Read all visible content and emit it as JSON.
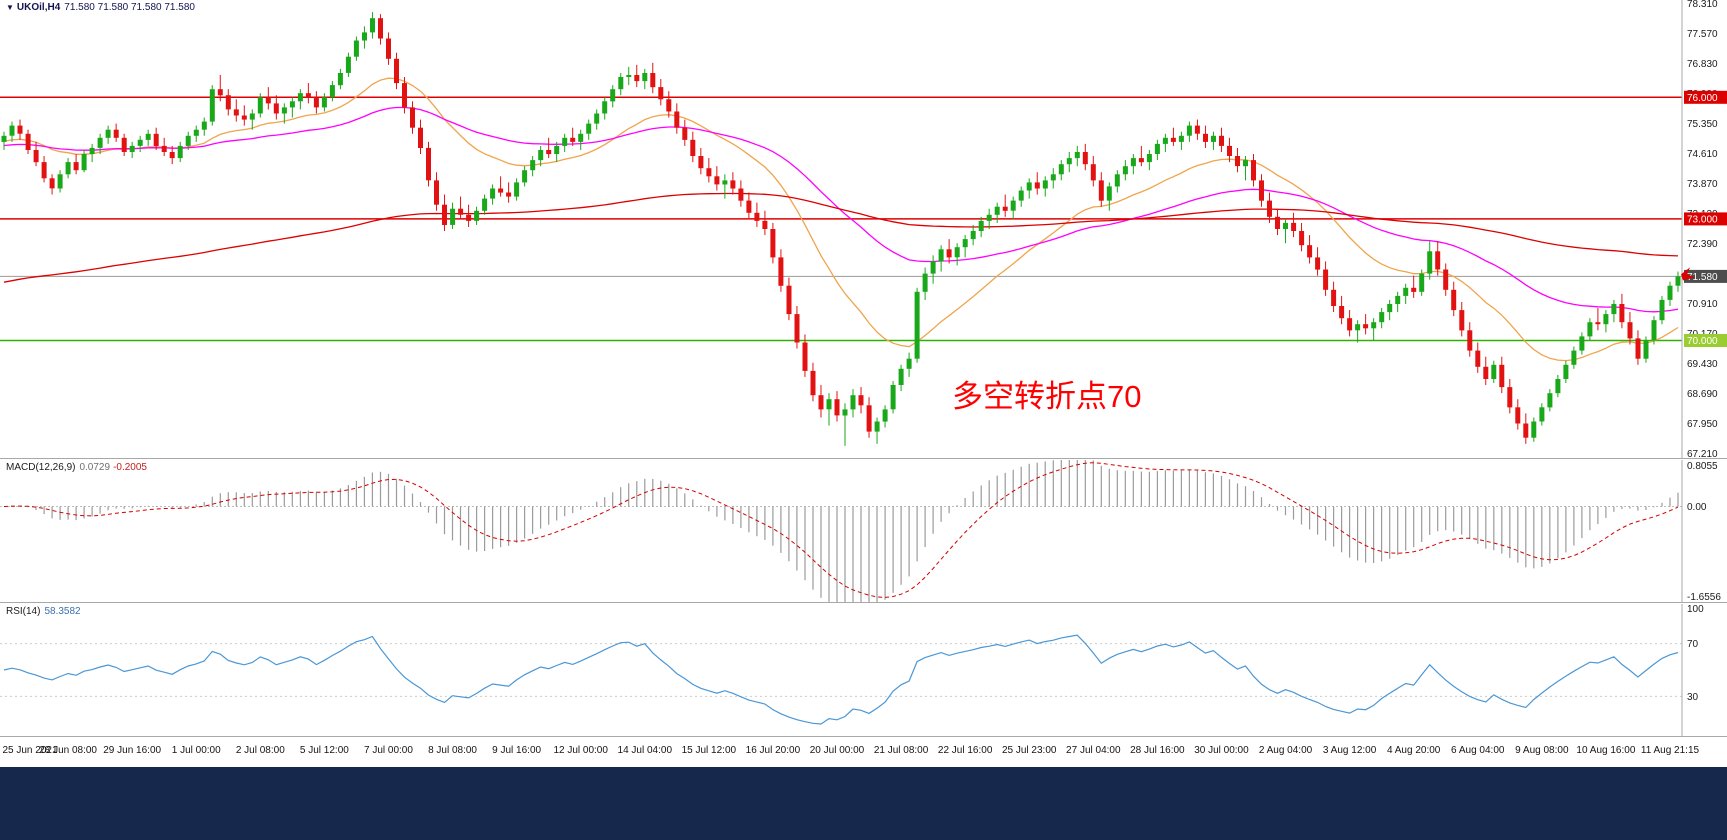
{
  "colors": {
    "background": "#ffffff",
    "up": "#19a819",
    "down": "#e31212",
    "ma_fast": "#f0a44c",
    "ma_mid": "#ff00ff",
    "ma_slow": "#dd0000",
    "current_price_line": "#9a9a9a",
    "current_price_badge_bg": "#4d4d4d",
    "macd_hist": "#9b9b9b",
    "macd_signal": "#d40000",
    "rsi_line": "#4a97d6",
    "annotation": "#ff0000",
    "taskbar": "#16294d",
    "separator": "#a8a8a8",
    "axis_text": "#1a1a1a"
  },
  "main_panel": {
    "collapse_icon": "▼",
    "title_symbol": "UKOil,H4",
    "title_ohlc": "71.580 71.580 71.580 71.580",
    "annotation": "多空转折点70"
  },
  "macd_panel": {
    "label": "MACD(12,26,9)",
    "value_main": "0.0729",
    "value_signal": "-0.2005",
    "axis_labels": [
      "0.8055",
      "0.00",
      "-1.6556"
    ],
    "range": {
      "max": 0.8055,
      "min": -1.6556
    }
  },
  "rsi_panel": {
    "label": "RSI(14)",
    "value": "58.3582",
    "period": 14,
    "levels": [
      70,
      30
    ],
    "axis_labels": [
      "100",
      "70",
      "30"
    ]
  },
  "chart_data": {
    "type": "candlestick",
    "symbol": "UKOil",
    "timeframe": "H4",
    "current_price": {
      "value": 71.58,
      "label": "71.580"
    },
    "price_scale": {
      "max": 78.4,
      "min": 67.1,
      "tick_labels": [
        "78.310",
        "77.570",
        "76.830",
        "76.090",
        "75.350",
        "74.610",
        "73.870",
        "73.130",
        "72.390",
        "71.650",
        "70.910",
        "70.170",
        "69.430",
        "68.690",
        "67.950",
        "67.210"
      ]
    },
    "horizontal_lines": [
      {
        "price": 76.0,
        "label": "76.000",
        "color": "#dd0000",
        "badge_bg": "#dd0000"
      },
      {
        "price": 73.0,
        "label": "73.000",
        "color": "#dd0000",
        "badge_bg": "#dd0000"
      },
      {
        "price": 70.0,
        "label": "70.000",
        "color": "#2db200",
        "badge_bg": "#9acd32"
      }
    ],
    "moving_averages": [
      {
        "name": "fast",
        "period": 21,
        "seed": 74.9,
        "color_key": "ma_fast"
      },
      {
        "name": "mid",
        "period": 55,
        "seed": 74.8,
        "color_key": "ma_mid"
      },
      {
        "name": "slow",
        "period": 200,
        "seed": 71.4,
        "color_key": "ma_slow"
      }
    ],
    "macd_params": {
      "fast": 12,
      "slow": 26,
      "signal": 9
    },
    "x_ticks_every_candles": 8,
    "x_tick_labels": [
      "25 Jun 2021",
      "28 Jun 08:00",
      "29 Jun 16:00",
      "1 Jul 00:00",
      "2 Jul 08:00",
      "5 Jul 12:00",
      "7 Jul 00:00",
      "8 Jul 08:00",
      "9 Jul 16:00",
      "12 Jul 00:00",
      "14 Jul 04:00",
      "15 Jul 12:00",
      "16 Jul 20:00",
      "20 Jul 00:00",
      "21 Jul 08:00",
      "22 Jul 16:00",
      "25 Jul 23:00",
      "27 Jul 04:00",
      "28 Jul 16:00",
      "30 Jul 00:00",
      "2 Aug 04:00",
      "3 Aug 12:00",
      "4 Aug 20:00",
      "6 Aug 04:00",
      "9 Aug 08:00",
      "10 Aug 16:00",
      "11 Aug 21:15"
    ],
    "candles_ohlc": [
      [
        74.9,
        75.15,
        74.7,
        75.05
      ],
      [
        75.05,
        75.4,
        74.9,
        75.3
      ],
      [
        75.3,
        75.45,
        74.95,
        75.1
      ],
      [
        75.1,
        75.2,
        74.6,
        74.7
      ],
      [
        74.7,
        74.9,
        74.3,
        74.4
      ],
      [
        74.4,
        74.55,
        73.9,
        74.0
      ],
      [
        74.0,
        74.1,
        73.6,
        73.75
      ],
      [
        73.75,
        74.2,
        73.65,
        74.1
      ],
      [
        74.1,
        74.5,
        74.0,
        74.4
      ],
      [
        74.4,
        74.6,
        74.1,
        74.2
      ],
      [
        74.2,
        74.7,
        74.15,
        74.6
      ],
      [
        74.6,
        74.85,
        74.4,
        74.75
      ],
      [
        74.75,
        75.1,
        74.6,
        75.0
      ],
      [
        75.0,
        75.3,
        74.85,
        75.2
      ],
      [
        75.2,
        75.35,
        74.9,
        75.0
      ],
      [
        75.0,
        75.1,
        74.55,
        74.65
      ],
      [
        74.65,
        74.9,
        74.5,
        74.8
      ],
      [
        74.8,
        75.05,
        74.65,
        74.95
      ],
      [
        74.95,
        75.2,
        74.8,
        75.1
      ],
      [
        75.1,
        75.25,
        74.7,
        74.8
      ],
      [
        74.8,
        75.0,
        74.55,
        74.65
      ],
      [
        74.65,
        74.8,
        74.35,
        74.5
      ],
      [
        74.5,
        74.9,
        74.4,
        74.8
      ],
      [
        74.8,
        75.15,
        74.7,
        75.05
      ],
      [
        75.05,
        75.3,
        74.9,
        75.2
      ],
      [
        75.2,
        75.5,
        75.05,
        75.4
      ],
      [
        75.4,
        76.3,
        75.3,
        76.2
      ],
      [
        76.2,
        76.55,
        75.9,
        76.05
      ],
      [
        76.05,
        76.2,
        75.55,
        75.7
      ],
      [
        75.7,
        75.95,
        75.4,
        75.55
      ],
      [
        75.55,
        75.8,
        75.3,
        75.45
      ],
      [
        75.45,
        75.7,
        75.2,
        75.6
      ],
      [
        75.6,
        76.1,
        75.5,
        76.0
      ],
      [
        76.0,
        76.25,
        75.7,
        75.85
      ],
      [
        75.85,
        76.05,
        75.45,
        75.6
      ],
      [
        75.6,
        75.85,
        75.35,
        75.75
      ],
      [
        75.75,
        76.0,
        75.5,
        75.9
      ],
      [
        75.9,
        76.2,
        75.7,
        76.1
      ],
      [
        76.1,
        76.35,
        75.85,
        76.0
      ],
      [
        76.0,
        76.15,
        75.6,
        75.75
      ],
      [
        75.75,
        76.1,
        75.65,
        76.0
      ],
      [
        76.0,
        76.4,
        75.9,
        76.3
      ],
      [
        76.3,
        76.7,
        76.2,
        76.6
      ],
      [
        76.6,
        77.1,
        76.5,
        77.0
      ],
      [
        77.0,
        77.5,
        76.9,
        77.4
      ],
      [
        77.4,
        77.75,
        77.2,
        77.6
      ],
      [
        77.6,
        78.1,
        77.45,
        77.95
      ],
      [
        77.95,
        78.05,
        77.3,
        77.45
      ],
      [
        77.45,
        77.6,
        76.8,
        76.95
      ],
      [
        76.95,
        77.1,
        76.2,
        76.35
      ],
      [
        76.35,
        76.5,
        75.6,
        75.75
      ],
      [
        75.75,
        75.9,
        75.1,
        75.25
      ],
      [
        75.25,
        75.45,
        74.6,
        74.75
      ],
      [
        74.75,
        74.9,
        73.8,
        73.95
      ],
      [
        73.95,
        74.15,
        73.2,
        73.35
      ],
      [
        73.35,
        73.6,
        72.7,
        72.85
      ],
      [
        72.85,
        73.4,
        72.75,
        73.25
      ],
      [
        73.25,
        73.55,
        73.0,
        73.1
      ],
      [
        73.1,
        73.35,
        72.8,
        72.95
      ],
      [
        72.95,
        73.3,
        72.85,
        73.2
      ],
      [
        73.2,
        73.6,
        73.1,
        73.5
      ],
      [
        73.5,
        73.85,
        73.35,
        73.75
      ],
      [
        73.75,
        74.05,
        73.55,
        73.65
      ],
      [
        73.65,
        73.9,
        73.4,
        73.55
      ],
      [
        73.55,
        74.0,
        73.45,
        73.9
      ],
      [
        73.9,
        74.3,
        73.8,
        74.2
      ],
      [
        74.2,
        74.55,
        74.05,
        74.45
      ],
      [
        74.45,
        74.8,
        74.3,
        74.7
      ],
      [
        74.7,
        75.0,
        74.5,
        74.6
      ],
      [
        74.6,
        74.9,
        74.4,
        74.8
      ],
      [
        74.8,
        75.1,
        74.65,
        75.0
      ],
      [
        75.0,
        75.25,
        74.8,
        74.9
      ],
      [
        74.9,
        75.2,
        74.7,
        75.1
      ],
      [
        75.1,
        75.45,
        74.95,
        75.35
      ],
      [
        75.35,
        75.7,
        75.2,
        75.6
      ],
      [
        75.6,
        76.0,
        75.45,
        75.9
      ],
      [
        75.9,
        76.3,
        75.75,
        76.2
      ],
      [
        76.2,
        76.6,
        76.05,
        76.5
      ],
      [
        76.5,
        76.75,
        76.3,
        76.55
      ],
      [
        76.55,
        76.8,
        76.25,
        76.4
      ],
      [
        76.4,
        76.7,
        76.2,
        76.6
      ],
      [
        76.6,
        76.85,
        76.1,
        76.25
      ],
      [
        76.25,
        76.45,
        75.8,
        75.95
      ],
      [
        75.95,
        76.15,
        75.5,
        75.65
      ],
      [
        75.65,
        75.85,
        75.1,
        75.25
      ],
      [
        75.25,
        75.45,
        74.8,
        74.95
      ],
      [
        74.95,
        75.15,
        74.4,
        74.55
      ],
      [
        74.55,
        74.75,
        74.1,
        74.25
      ],
      [
        74.25,
        74.5,
        73.9,
        74.05
      ],
      [
        74.05,
        74.3,
        73.7,
        73.85
      ],
      [
        73.85,
        74.1,
        73.5,
        73.95
      ],
      [
        73.95,
        74.15,
        73.6,
        73.75
      ],
      [
        73.75,
        73.95,
        73.3,
        73.45
      ],
      [
        73.45,
        73.65,
        73.0,
        73.15
      ],
      [
        73.15,
        73.4,
        72.8,
        72.95
      ],
      [
        72.95,
        73.2,
        72.6,
        72.75
      ],
      [
        72.75,
        72.9,
        71.9,
        72.05
      ],
      [
        72.05,
        72.25,
        71.2,
        71.35
      ],
      [
        71.35,
        71.55,
        70.5,
        70.65
      ],
      [
        70.65,
        70.85,
        69.8,
        69.95
      ],
      [
        69.95,
        70.15,
        69.1,
        69.25
      ],
      [
        69.25,
        69.45,
        68.5,
        68.65
      ],
      [
        68.65,
        68.9,
        68.1,
        68.3
      ],
      [
        68.3,
        68.7,
        67.9,
        68.55
      ],
      [
        68.55,
        68.75,
        68.0,
        68.15
      ],
      [
        68.15,
        68.45,
        67.4,
        68.3
      ],
      [
        68.3,
        68.8,
        68.1,
        68.65
      ],
      [
        68.65,
        68.85,
        68.2,
        68.4
      ],
      [
        68.4,
        68.6,
        67.6,
        67.75
      ],
      [
        67.75,
        68.1,
        67.45,
        68.0
      ],
      [
        68.0,
        68.4,
        67.85,
        68.3
      ],
      [
        68.3,
        69.0,
        68.2,
        68.9
      ],
      [
        68.9,
        69.4,
        68.75,
        69.3
      ],
      [
        69.3,
        69.7,
        69.1,
        69.55
      ],
      [
        69.55,
        71.3,
        69.45,
        71.2
      ],
      [
        71.2,
        71.8,
        71.0,
        71.65
      ],
      [
        71.65,
        72.1,
        71.4,
        71.95
      ],
      [
        71.95,
        72.35,
        71.7,
        72.25
      ],
      [
        72.25,
        72.5,
        71.9,
        72.05
      ],
      [
        72.05,
        72.4,
        71.85,
        72.3
      ],
      [
        72.3,
        72.6,
        72.05,
        72.5
      ],
      [
        72.5,
        72.85,
        72.35,
        72.7
      ],
      [
        72.7,
        73.05,
        72.55,
        72.95
      ],
      [
        72.95,
        73.25,
        72.75,
        73.1
      ],
      [
        73.1,
        73.4,
        72.9,
        73.3
      ],
      [
        73.3,
        73.6,
        73.05,
        73.2
      ],
      [
        73.2,
        73.55,
        73.0,
        73.45
      ],
      [
        73.45,
        73.8,
        73.3,
        73.7
      ],
      [
        73.7,
        74.0,
        73.5,
        73.9
      ],
      [
        73.9,
        74.15,
        73.6,
        73.75
      ],
      [
        73.75,
        74.05,
        73.55,
        73.95
      ],
      [
        73.95,
        74.25,
        73.75,
        74.1
      ],
      [
        74.1,
        74.45,
        73.95,
        74.35
      ],
      [
        74.35,
        74.65,
        74.15,
        74.5
      ],
      [
        74.5,
        74.8,
        74.3,
        74.65
      ],
      [
        74.65,
        74.85,
        74.2,
        74.35
      ],
      [
        74.35,
        74.55,
        73.8,
        73.95
      ],
      [
        73.95,
        74.15,
        73.3,
        73.45
      ],
      [
        73.45,
        73.9,
        73.2,
        73.8
      ],
      [
        73.8,
        74.2,
        73.65,
        74.1
      ],
      [
        74.1,
        74.45,
        73.95,
        74.3
      ],
      [
        74.3,
        74.6,
        74.1,
        74.5
      ],
      [
        74.5,
        74.8,
        74.3,
        74.4
      ],
      [
        74.4,
        74.7,
        74.2,
        74.6
      ],
      [
        74.6,
        74.95,
        74.45,
        74.85
      ],
      [
        74.85,
        75.1,
        74.65,
        75.0
      ],
      [
        75.0,
        75.25,
        74.8,
        74.9
      ],
      [
        74.9,
        75.15,
        74.7,
        75.05
      ],
      [
        75.05,
        75.4,
        74.9,
        75.3
      ],
      [
        75.3,
        75.45,
        74.95,
        75.1
      ],
      [
        75.1,
        75.3,
        74.75,
        74.9
      ],
      [
        74.9,
        75.15,
        74.7,
        75.05
      ],
      [
        75.05,
        75.25,
        74.65,
        74.8
      ],
      [
        74.8,
        75.0,
        74.4,
        74.55
      ],
      [
        74.55,
        74.75,
        74.15,
        74.3
      ],
      [
        74.3,
        74.55,
        73.95,
        74.45
      ],
      [
        74.45,
        74.6,
        73.8,
        73.95
      ],
      [
        73.95,
        74.1,
        73.3,
        73.45
      ],
      [
        73.45,
        73.65,
        72.9,
        73.05
      ],
      [
        73.05,
        73.25,
        72.6,
        72.75
      ],
      [
        72.75,
        73.0,
        72.4,
        72.9
      ],
      [
        72.9,
        73.15,
        72.55,
        72.7
      ],
      [
        72.7,
        72.9,
        72.2,
        72.35
      ],
      [
        72.35,
        72.6,
        71.9,
        72.05
      ],
      [
        72.05,
        72.3,
        71.6,
        71.75
      ],
      [
        71.75,
        71.95,
        71.1,
        71.25
      ],
      [
        71.25,
        71.45,
        70.7,
        70.85
      ],
      [
        70.85,
        71.1,
        70.4,
        70.55
      ],
      [
        70.55,
        70.75,
        70.1,
        70.25
      ],
      [
        70.25,
        70.5,
        69.95,
        70.4
      ],
      [
        70.4,
        70.65,
        70.15,
        70.3
      ],
      [
        70.3,
        70.55,
        70.0,
        70.45
      ],
      [
        70.45,
        70.8,
        70.3,
        70.7
      ],
      [
        70.7,
        71.0,
        70.5,
        70.9
      ],
      [
        70.9,
        71.2,
        70.7,
        71.1
      ],
      [
        71.1,
        71.4,
        70.9,
        71.3
      ],
      [
        71.3,
        71.6,
        71.05,
        71.2
      ],
      [
        71.2,
        71.75,
        71.1,
        71.65
      ],
      [
        71.65,
        72.45,
        71.5,
        72.2
      ],
      [
        72.2,
        72.45,
        71.6,
        71.75
      ],
      [
        71.75,
        71.9,
        71.1,
        71.25
      ],
      [
        71.25,
        71.45,
        70.6,
        70.75
      ],
      [
        70.75,
        70.95,
        70.1,
        70.25
      ],
      [
        70.25,
        70.45,
        69.6,
        69.75
      ],
      [
        69.75,
        69.95,
        69.2,
        69.35
      ],
      [
        69.35,
        69.6,
        68.9,
        69.05
      ],
      [
        69.05,
        69.5,
        68.95,
        69.4
      ],
      [
        69.4,
        69.6,
        68.7,
        68.85
      ],
      [
        68.85,
        69.05,
        68.2,
        68.35
      ],
      [
        68.35,
        68.55,
        67.8,
        67.95
      ],
      [
        67.95,
        68.2,
        67.45,
        67.6
      ],
      [
        67.6,
        68.1,
        67.5,
        68.0
      ],
      [
        68.0,
        68.45,
        67.9,
        68.35
      ],
      [
        68.35,
        68.8,
        68.25,
        68.7
      ],
      [
        68.7,
        69.15,
        68.6,
        69.05
      ],
      [
        69.05,
        69.5,
        68.95,
        69.4
      ],
      [
        69.4,
        69.85,
        69.3,
        69.75
      ],
      [
        69.75,
        70.2,
        69.65,
        70.1
      ],
      [
        70.1,
        70.55,
        70.0,
        70.45
      ],
      [
        70.45,
        70.8,
        70.25,
        70.4
      ],
      [
        70.4,
        70.75,
        70.2,
        70.65
      ],
      [
        70.65,
        71.0,
        70.45,
        70.9
      ],
      [
        70.9,
        71.15,
        70.3,
        70.45
      ],
      [
        70.45,
        70.7,
        69.9,
        70.05
      ],
      [
        70.05,
        70.25,
        69.4,
        69.55
      ],
      [
        69.55,
        70.1,
        69.45,
        70.0
      ],
      [
        70.0,
        70.6,
        69.9,
        70.5
      ],
      [
        70.5,
        71.1,
        70.4,
        71.0
      ],
      [
        71.0,
        71.45,
        70.85,
        71.35
      ],
      [
        71.35,
        71.7,
        71.2,
        71.58
      ]
    ]
  }
}
